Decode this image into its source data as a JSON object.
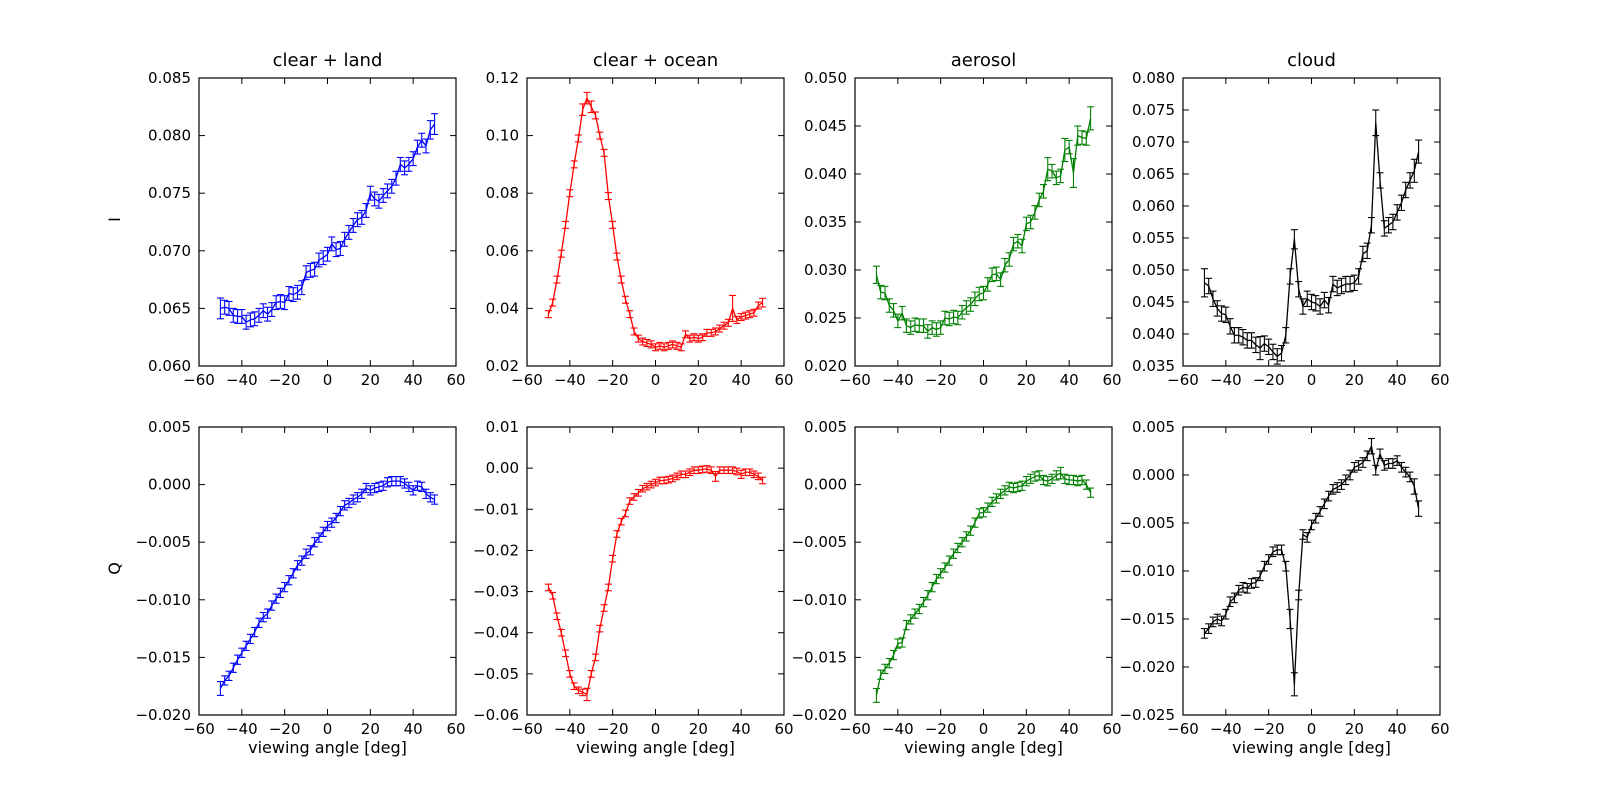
{
  "figure": {
    "xlabel": "viewing angle [deg]",
    "row_labels": [
      "I",
      "Q"
    ],
    "xlim": [
      -60,
      60
    ],
    "x_ticks": [
      -60,
      -40,
      -20,
      0,
      20,
      40,
      60
    ],
    "x_tick_labels": [
      "−60",
      "−40",
      "−20",
      "0",
      "20",
      "40",
      "60"
    ],
    "x_values": [
      -50,
      -48,
      -46,
      -44,
      -42,
      -40,
      -38,
      -36,
      -34,
      -32,
      -30,
      -28,
      -26,
      -24,
      -22,
      -20,
      -18,
      -16,
      -14,
      -12,
      -10,
      -8,
      -6,
      -4,
      -2,
      0,
      2,
      4,
      6,
      8,
      10,
      12,
      14,
      16,
      18,
      20,
      22,
      24,
      26,
      28,
      30,
      32,
      34,
      36,
      38,
      40,
      42,
      44,
      46,
      48,
      50
    ],
    "background": "#ffffff",
    "axis_color": "#000000"
  },
  "chart_data": [
    {
      "id": "clear_land_I",
      "type": "line",
      "row": 0,
      "col": 0,
      "title": "clear + land",
      "color": "#0000ff",
      "ylim": [
        0.06,
        0.085
      ],
      "yticks": [
        0.06,
        0.065,
        0.07,
        0.075,
        0.08,
        0.085
      ],
      "ytick_labels": [
        "0.060",
        "0.065",
        "0.070",
        "0.075",
        "0.080",
        "0.085"
      ],
      "y": [
        0.065,
        0.0651,
        0.065,
        0.0644,
        0.0643,
        0.0643,
        0.0638,
        0.064,
        0.0641,
        0.0644,
        0.0648,
        0.0645,
        0.0649,
        0.0655,
        0.0656,
        0.0655,
        0.0663,
        0.0662,
        0.0664,
        0.0668,
        0.0681,
        0.0683,
        0.0684,
        0.0692,
        0.0694,
        0.0697,
        0.0706,
        0.0701,
        0.0702,
        0.071,
        0.0716,
        0.0722,
        0.0727,
        0.0729,
        0.0735,
        0.075,
        0.0745,
        0.0743,
        0.0748,
        0.0752,
        0.0756,
        0.0763,
        0.0775,
        0.0772,
        0.0775,
        0.078,
        0.079,
        0.0796,
        0.0791,
        0.0805,
        0.081
      ],
      "yerr": {
        "base": 0.0006,
        "overrides": {
          "-50": 0.0009,
          "48": 0.0008,
          "50": 0.0009
        }
      }
    },
    {
      "id": "clear_ocean_I",
      "type": "line",
      "row": 0,
      "col": 1,
      "title": "clear + ocean",
      "color": "#ff0000",
      "ylim": [
        0.02,
        0.12
      ],
      "yticks": [
        0.02,
        0.04,
        0.06,
        0.08,
        0.1,
        0.12
      ],
      "ytick_labels": [
        "0.02",
        "0.04",
        "0.06",
        "0.08",
        "0.10",
        "0.12"
      ],
      "y": [
        0.038,
        0.042,
        0.05,
        0.059,
        0.069,
        0.08,
        0.09,
        0.099,
        0.109,
        0.113,
        0.11,
        0.107,
        0.1,
        0.094,
        0.079,
        0.069,
        0.058,
        0.05,
        0.043,
        0.038,
        0.032,
        0.0295,
        0.0285,
        0.028,
        0.0275,
        0.0265,
        0.027,
        0.0265,
        0.027,
        0.0275,
        0.027,
        0.0265,
        0.031,
        0.0295,
        0.03,
        0.0295,
        0.03,
        0.0315,
        0.0315,
        0.032,
        0.033,
        0.034,
        0.035,
        0.04,
        0.036,
        0.037,
        0.0375,
        0.038,
        0.0385,
        0.041,
        0.042
      ],
      "yerr": {
        "base": 0.0012,
        "overrides": {
          "-34": 0.002,
          "-32": 0.002,
          "-30": 0.002,
          "36": 0.0045,
          "50": 0.0015
        }
      }
    },
    {
      "id": "aerosol_I",
      "type": "line",
      "row": 0,
      "col": 2,
      "title": "aerosol",
      "color": "#008000",
      "ylim": [
        0.02,
        0.05
      ],
      "yticks": [
        0.02,
        0.025,
        0.03,
        0.035,
        0.04,
        0.045,
        0.05
      ],
      "ytick_labels": [
        "0.020",
        "0.025",
        "0.030",
        "0.035",
        "0.040",
        "0.045",
        "0.050"
      ],
      "y": [
        0.0295,
        0.0277,
        0.0276,
        0.0263,
        0.0258,
        0.0247,
        0.0255,
        0.0242,
        0.024,
        0.0243,
        0.0242,
        0.0242,
        0.0236,
        0.024,
        0.0238,
        0.024,
        0.025,
        0.0249,
        0.0251,
        0.025,
        0.0256,
        0.0261,
        0.0264,
        0.027,
        0.0275,
        0.0276,
        0.0285,
        0.0295,
        0.0296,
        0.029,
        0.0305,
        0.0311,
        0.0327,
        0.033,
        0.0325,
        0.0348,
        0.035,
        0.036,
        0.0373,
        0.0382,
        0.0405,
        0.0403,
        0.0396,
        0.0398,
        0.0425,
        0.0428,
        0.0401,
        0.044,
        0.0438,
        0.0437,
        0.0458
      ],
      "yerr": {
        "base": 0.0007,
        "overrides": {
          "-50": 0.0009,
          "30": 0.0012,
          "38": 0.0012,
          "42": 0.0015,
          "44": 0.001,
          "50": 0.0012
        }
      }
    },
    {
      "id": "cloud_I",
      "type": "line",
      "row": 0,
      "col": 3,
      "title": "cloud",
      "color": "#000000",
      "ylim": [
        0.035,
        0.08
      ],
      "yticks": [
        0.035,
        0.04,
        0.045,
        0.05,
        0.055,
        0.06,
        0.065,
        0.07,
        0.075,
        0.08
      ],
      "ytick_labels": [
        "0.035",
        "0.040",
        "0.045",
        "0.050",
        "0.055",
        "0.060",
        "0.065",
        "0.070",
        "0.075",
        "0.080"
      ],
      "y": [
        0.048,
        0.0475,
        0.0455,
        0.044,
        0.0432,
        0.043,
        0.0412,
        0.0398,
        0.0398,
        0.0395,
        0.039,
        0.039,
        0.0383,
        0.0378,
        0.0385,
        0.038,
        0.0372,
        0.0365,
        0.037,
        0.0398,
        0.049,
        0.0548,
        0.047,
        0.0443,
        0.0455,
        0.045,
        0.0448,
        0.0443,
        0.0453,
        0.0445,
        0.0478,
        0.0472,
        0.0475,
        0.0478,
        0.0478,
        0.048,
        0.049,
        0.0525,
        0.053,
        0.057,
        0.073,
        0.064,
        0.0565,
        0.057,
        0.0575,
        0.059,
        0.0605,
        0.0625,
        0.064,
        0.0655,
        0.0685
      ],
      "yerr": {
        "base": 0.0012,
        "overrides": {
          "-50": 0.0022,
          "-24": 0.0018,
          "-8": 0.0015,
          "30": 0.002,
          "48": 0.0018,
          "50": 0.0018
        }
      }
    },
    {
      "id": "clear_land_Q",
      "type": "line",
      "row": 1,
      "col": 0,
      "title": "clear + land",
      "color": "#0000ff",
      "ylim": [
        -0.02,
        0.005
      ],
      "yticks": [
        -0.02,
        -0.015,
        -0.01,
        -0.005,
        0.0,
        0.005
      ],
      "ytick_labels": [
        "−0.020",
        "−0.015",
        "−0.010",
        "−0.005",
        "0.000",
        "0.005"
      ],
      "y": [
        -0.0177,
        -0.017,
        -0.0166,
        -0.0159,
        -0.0152,
        -0.0146,
        -0.014,
        -0.0134,
        -0.0128,
        -0.012,
        -0.0115,
        -0.0112,
        -0.0105,
        -0.0099,
        -0.0094,
        -0.0089,
        -0.0083,
        -0.0077,
        -0.007,
        -0.0066,
        -0.006,
        -0.0057,
        -0.005,
        -0.0046,
        -0.0041,
        -0.0036,
        -0.0033,
        -0.0029,
        -0.0023,
        -0.0018,
        -0.0016,
        -0.0013,
        -0.0011,
        -0.0008,
        -0.0003,
        -0.0005,
        -0.0003,
        -0.0002,
        -0.0001,
        0.0002,
        0.0003,
        0.0003,
        0.0003,
        0.0001,
        -0.0002,
        -0.0005,
        -0.0001,
        -0.0002,
        -0.0008,
        -0.0011,
        -0.0013
      ],
      "yerr": {
        "base": 0.0004,
        "overrides": {
          "-50": 0.0006
        }
      }
    },
    {
      "id": "clear_ocean_Q",
      "type": "line",
      "row": 1,
      "col": 1,
      "title": "clear + ocean",
      "color": "#ff0000",
      "ylim": [
        -0.06,
        0.01
      ],
      "yticks": [
        -0.06,
        -0.05,
        -0.04,
        -0.03,
        -0.02,
        -0.01,
        0.0,
        0.01
      ],
      "ytick_labels": [
        "−0.06",
        "−0.05",
        "−0.04",
        "−0.03",
        "−0.02",
        "−0.01",
        "0.00",
        "0.01"
      ],
      "y": [
        -0.029,
        -0.031,
        -0.036,
        -0.04,
        -0.045,
        -0.05,
        -0.053,
        -0.054,
        -0.0545,
        -0.055,
        -0.05,
        -0.046,
        -0.039,
        -0.034,
        -0.029,
        -0.022,
        -0.016,
        -0.013,
        -0.011,
        -0.008,
        -0.007,
        -0.006,
        -0.005,
        -0.0045,
        -0.004,
        -0.0035,
        -0.003,
        -0.003,
        -0.0028,
        -0.0025,
        -0.002,
        -0.0015,
        -0.0015,
        -0.001,
        -0.0005,
        -0.0005,
        -0.0003,
        -0.0002,
        -0.0005,
        -0.002,
        -0.0005,
        -0.0005,
        -0.0005,
        -0.0005,
        -0.0008,
        -0.0015,
        -0.001,
        -0.001,
        -0.0015,
        -0.002,
        -0.003
      ],
      "yerr": {
        "base": 0.0008,
        "overrides": {
          "-32": 0.0015,
          "28": 0.0012,
          "40": 0.001
        }
      }
    },
    {
      "id": "aerosol_Q",
      "type": "line",
      "row": 1,
      "col": 2,
      "title": "aerosol",
      "color": "#008000",
      "ylim": [
        -0.02,
        0.005
      ],
      "yticks": [
        -0.02,
        -0.015,
        -0.01,
        -0.005,
        0.0,
        0.005
      ],
      "ytick_labels": [
        "−0.020",
        "−0.015",
        "−0.010",
        "−0.005",
        "0.000",
        "0.005"
      ],
      "y": [
        -0.0183,
        -0.0165,
        -0.016,
        -0.0155,
        -0.0148,
        -0.0138,
        -0.0137,
        -0.0122,
        -0.0117,
        -0.0112,
        -0.0108,
        -0.0102,
        -0.0096,
        -0.0089,
        -0.0082,
        -0.0077,
        -0.0072,
        -0.0066,
        -0.006,
        -0.0055,
        -0.005,
        -0.0045,
        -0.004,
        -0.0033,
        -0.0025,
        -0.0024,
        -0.002,
        -0.0015,
        -0.0012,
        -0.0008,
        -0.0005,
        -0.0002,
        -0.0003,
        -0.0002,
        -0.0001,
        0.0003,
        0.0005,
        0.0007,
        0.0008,
        0.0004,
        0.0003,
        0.0005,
        0.0008,
        0.001,
        0.0005,
        0.0004,
        0.0004,
        0.0003,
        0.0004,
        0.0,
        -0.0007
      ],
      "yerr": {
        "base": 0.0004,
        "overrides": {
          "-50": 0.0006,
          "36": 0.0005
        }
      }
    },
    {
      "id": "cloud_Q",
      "type": "line",
      "row": 1,
      "col": 3,
      "title": "cloud",
      "color": "#000000",
      "ylim": [
        -0.025,
        0.005
      ],
      "yticks": [
        -0.025,
        -0.02,
        -0.015,
        -0.01,
        -0.005,
        0.0,
        0.005
      ],
      "ytick_labels": [
        "−0.025",
        "−0.020",
        "−0.015",
        "−0.010",
        "−0.005",
        "0.000",
        "0.005"
      ],
      "y": [
        -0.0165,
        -0.016,
        -0.0153,
        -0.015,
        -0.0152,
        -0.0145,
        -0.0132,
        -0.0128,
        -0.012,
        -0.0117,
        -0.0118,
        -0.0113,
        -0.0112,
        -0.0105,
        -0.0095,
        -0.0088,
        -0.008,
        -0.0078,
        -0.0078,
        -0.0095,
        -0.015,
        -0.0218,
        -0.0125,
        -0.0062,
        -0.0065,
        -0.0052,
        -0.0045,
        -0.0038,
        -0.003,
        -0.0022,
        -0.0015,
        -0.0013,
        -0.001,
        -0.0005,
        0.0,
        0.0008,
        0.001,
        0.0013,
        0.002,
        0.003,
        0.0005,
        0.0022,
        0.001,
        0.0012,
        0.0012,
        0.0015,
        0.0008,
        0.0003,
        -0.0002,
        -0.0012,
        -0.0035
      ],
      "yerr": {
        "base": 0.0005,
        "overrides": {
          "-10": 0.001,
          "-8": 0.0012,
          "28": 0.0008,
          "48": 0.0008,
          "50": 0.0008
        }
      }
    }
  ]
}
